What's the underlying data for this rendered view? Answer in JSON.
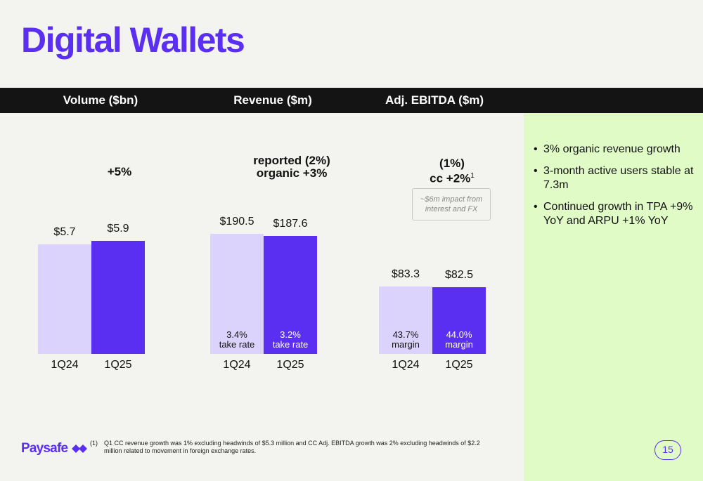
{
  "title": "Digital Wallets",
  "columns": [
    "Volume ($bn)",
    "Revenue ($m)",
    "Adj. EBITDA ($m)"
  ],
  "colors": {
    "accent": "#5b2ff2",
    "light": "#dcd3fc",
    "panel": "#e1fbc7"
  },
  "growth": {
    "volume": "+5%",
    "revenue_line1": "reported (2%)",
    "revenue_line2": "organic +3%",
    "ebitda_line1": "(1%)",
    "ebitda_line2": "cc +2%",
    "ebitda_sup": "1"
  },
  "ebitda_note": {
    "line1": "~$6m impact from",
    "line2": "interest and FX"
  },
  "side_bullets": [
    "3% organic revenue growth",
    "3-month active users stable at 7.3m",
    "Continued growth in TPA +9% YoY and ARPU +1% YoY"
  ],
  "chart_data": [
    {
      "type": "bar",
      "title": "Volume ($bn)",
      "categories": [
        "1Q24",
        "1Q25"
      ],
      "values": [
        5.7,
        5.9
      ],
      "value_labels": [
        "$5.7",
        "$5.9"
      ],
      "inner_labels": []
    },
    {
      "type": "bar",
      "title": "Revenue ($m)",
      "categories": [
        "1Q24",
        "1Q25"
      ],
      "values": [
        190.5,
        187.6
      ],
      "value_labels": [
        "$190.5",
        "$187.6"
      ],
      "inner_labels": [
        [
          "3.4%",
          "take rate"
        ],
        [
          "3.2%",
          "take rate"
        ]
      ]
    },
    {
      "type": "bar",
      "title": "Adj. EBITDA ($m)",
      "categories": [
        "1Q24",
        "1Q25"
      ],
      "values": [
        83.3,
        82.5
      ],
      "value_labels": [
        "$83.3",
        "$82.5"
      ],
      "inner_labels": [
        [
          "43.7%",
          "margin"
        ],
        [
          "44.0%",
          "margin"
        ]
      ]
    }
  ],
  "footer": {
    "logo": "Paysafe",
    "footnote_marker": "(1)",
    "footnote_text": "Q1 CC revenue growth was 1% excluding headwinds of $5.3 million and CC Adj. EBITDA growth was 2% excluding headwinds of $2.2 million related to movement in foreign exchange rates.",
    "page_number": "15"
  }
}
